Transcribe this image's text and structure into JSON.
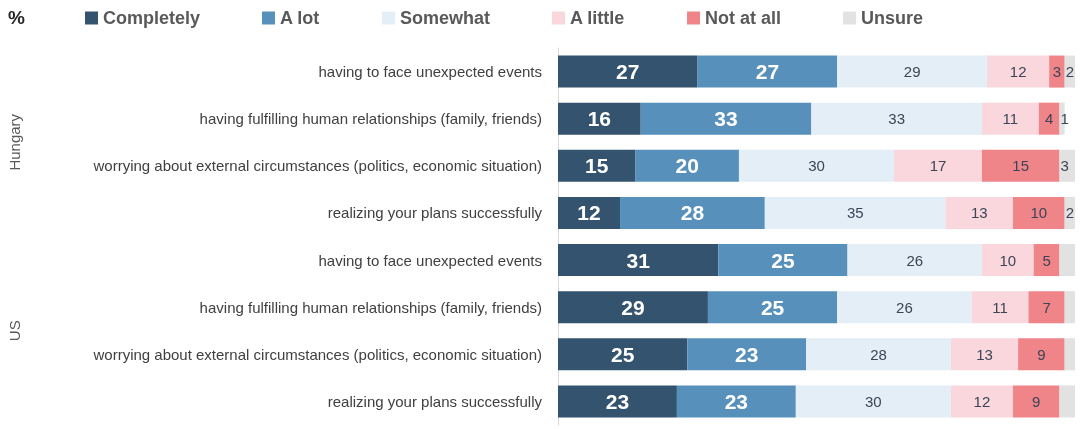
{
  "chart_data": {
    "type": "bar",
    "orientation": "horizontal",
    "stacked": true,
    "categories": [
      "having to face unexpected events",
      "having fulfilling human relationships (family, friends)",
      "worrying about external circumstances (politics, economic situation)",
      "realizing your plans successfully",
      "having to face unexpected events",
      "having fulfilling human relationships (family, friends)",
      "worrying about external circumstances (politics, economic situation)",
      "realizing your plans successfully"
    ],
    "series": [
      {
        "name": "Completely",
        "color": "#34536f",
        "values": [
          27,
          16,
          15,
          12,
          31,
          29,
          25,
          23
        ]
      },
      {
        "name": "A lot",
        "color": "#5790bb",
        "values": [
          27,
          33,
          20,
          28,
          25,
          25,
          23,
          23
        ]
      },
      {
        "name": "Somewhat",
        "color": "#e3eef6",
        "values": [
          29,
          33,
          30,
          35,
          26,
          26,
          28,
          30
        ]
      },
      {
        "name": "A little",
        "color": "#f9d7dc",
        "values": [
          12,
          11,
          17,
          13,
          10,
          11,
          13,
          12
        ]
      },
      {
        "name": "Not at all",
        "color": "#ef8489",
        "values": [
          3,
          4,
          15,
          10,
          5,
          7,
          9,
          9
        ]
      },
      {
        "name": "Unsure",
        "color": "#e2e2e2",
        "values": [
          2,
          1,
          3,
          2,
          3,
          2,
          2,
          3
        ],
        "value_labels": [
          "2",
          "1",
          "3",
          "2",
          null,
          null,
          null,
          null
        ]
      }
    ],
    "data_labels": true,
    "xlim": [
      0,
      100
    ],
    "tick_labels": "y",
    "grid": false,
    "legend": "top",
    "annotations": [
      "%",
      "Hungary",
      "US"
    ]
  }
}
